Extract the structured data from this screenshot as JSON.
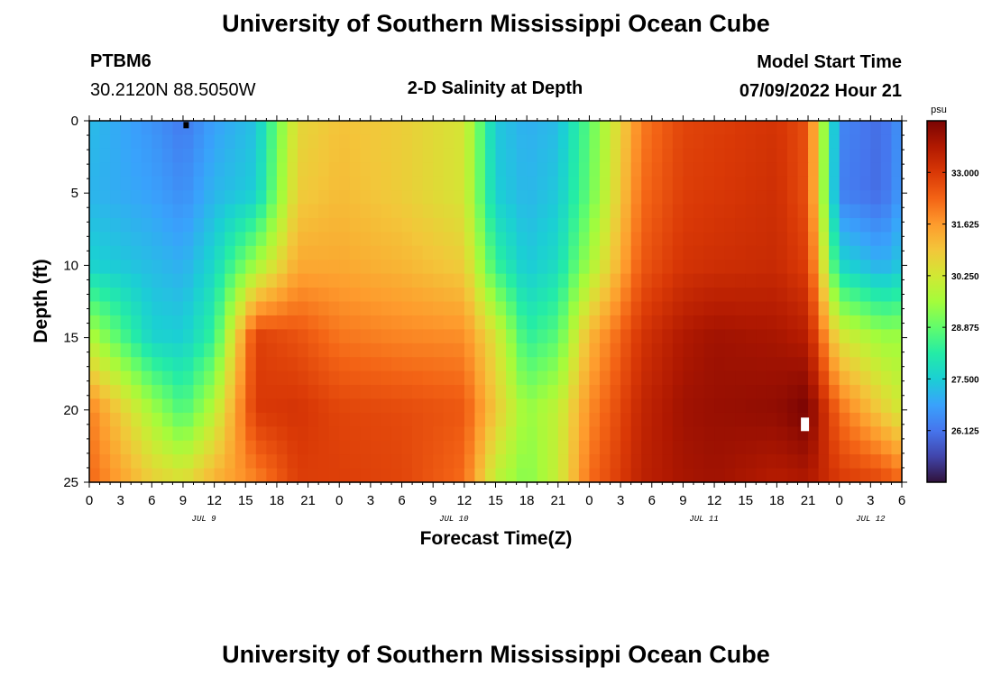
{
  "titles": {
    "main": "University of Southern Mississippi Ocean Cube",
    "bottom": "University of Southern Mississippi Ocean Cube"
  },
  "station": {
    "id": "PTBM6",
    "location": "30.2120N  88.5050W"
  },
  "model": {
    "start_label": "Model Start Time",
    "start_value": "07/09/2022 Hour 21"
  },
  "chart_data": {
    "type": "heatmap",
    "title": "2-D Salinity at Depth",
    "xlabel": "Forecast Time(Z)",
    "ylabel": "Depth (ft)",
    "x_hours_since_start": [
      0,
      78
    ],
    "x_tick_labels": [
      "0",
      "3",
      "6",
      "9",
      "12",
      "15",
      "18",
      "21",
      "0",
      "3",
      "6",
      "9",
      "12",
      "15",
      "18",
      "21",
      "0",
      "3",
      "6",
      "9",
      "12",
      "15",
      "18",
      "21",
      "0",
      "3",
      "6"
    ],
    "day_labels": [
      {
        "label": "JUL 9",
        "hour": 11
      },
      {
        "label": "JUL 10",
        "hour": 35
      },
      {
        "label": "JUL 11",
        "hour": 59
      },
      {
        "label": "JUL 12",
        "hour": 75
      }
    ],
    "ylim": [
      0,
      25
    ],
    "y_ticks": [
      0,
      5,
      10,
      15,
      20,
      25
    ],
    "colorbar": {
      "unit": "psu",
      "range": [
        24.75,
        34.375
      ],
      "ticks": [
        "33.000",
        "31.625",
        "30.250",
        "28.875",
        "27.500",
        "26.125"
      ],
      "tick_values": [
        33.0,
        31.625,
        30.25,
        28.875,
        27.5,
        26.125
      ],
      "colors": [
        "#30123b",
        "#4145ab",
        "#4675ed",
        "#39a2fc",
        "#1bcfd4",
        "#24eca6",
        "#61fc6c",
        "#a4fc3b",
        "#d1e834",
        "#f3c63a",
        "#fe9b2d",
        "#f36315",
        "#d93806",
        "#b11901",
        "#7a0403"
      ]
    },
    "markers": [
      {
        "type": "min",
        "hour": 9.3,
        "depth": 0.3,
        "color": "#000000"
      },
      {
        "type": "max",
        "hour": 68.7,
        "depth": 21.0,
        "color": "#ffffff"
      }
    ],
    "profile_columns": {
      "hours": [
        0,
        6,
        9,
        12,
        16,
        20,
        24,
        30,
        36,
        39,
        42,
        45,
        48,
        53,
        57,
        60,
        66,
        69,
        72,
        76,
        78
      ],
      "depths": [
        0,
        5,
        10,
        15,
        20,
        25
      ],
      "salinity_psu": [
        [
          27.2,
          27.1,
          27.6,
          29.8,
          32.0,
          32.3
        ],
        [
          26.6,
          26.8,
          27.2,
          27.6,
          29.6,
          30.8
        ],
        [
          26.2,
          26.5,
          27.0,
          27.5,
          28.6,
          30.5
        ],
        [
          26.8,
          27.1,
          27.7,
          28.4,
          29.9,
          31.3
        ],
        [
          27.3,
          27.5,
          29.6,
          32.9,
          33.0,
          31.9
        ],
        [
          30.6,
          30.8,
          31.4,
          32.6,
          33.1,
          32.9
        ],
        [
          31.0,
          31.1,
          31.4,
          32.1,
          32.8,
          32.9
        ],
        [
          30.8,
          30.8,
          31.2,
          31.9,
          32.7,
          32.8
        ],
        [
          30.3,
          30.3,
          30.8,
          31.8,
          32.5,
          32.2
        ],
        [
          27.4,
          27.5,
          28.4,
          30.4,
          30.9,
          29.9
        ],
        [
          27.0,
          27.1,
          27.4,
          28.3,
          29.4,
          29.2
        ],
        [
          27.2,
          27.4,
          27.8,
          28.8,
          30.0,
          30.1
        ],
        [
          28.8,
          28.9,
          29.6,
          31.2,
          31.8,
          32.2
        ],
        [
          32.0,
          32.2,
          32.5,
          33.1,
          33.4,
          33.5
        ],
        [
          32.8,
          32.9,
          33.1,
          33.7,
          33.9,
          33.8
        ],
        [
          32.9,
          33.0,
          33.2,
          33.9,
          34.0,
          33.9
        ],
        [
          33.1,
          33.2,
          33.3,
          33.8,
          34.1,
          33.6
        ],
        [
          32.6,
          32.6,
          32.9,
          33.6,
          34.4,
          33.7
        ],
        [
          26.4,
          26.3,
          27.7,
          30.4,
          32.2,
          33.0
        ],
        [
          26.0,
          26.0,
          27.0,
          29.5,
          30.8,
          32.8
        ],
        [
          26.6,
          26.7,
          27.4,
          29.5,
          30.2,
          32.3
        ]
      ]
    }
  }
}
